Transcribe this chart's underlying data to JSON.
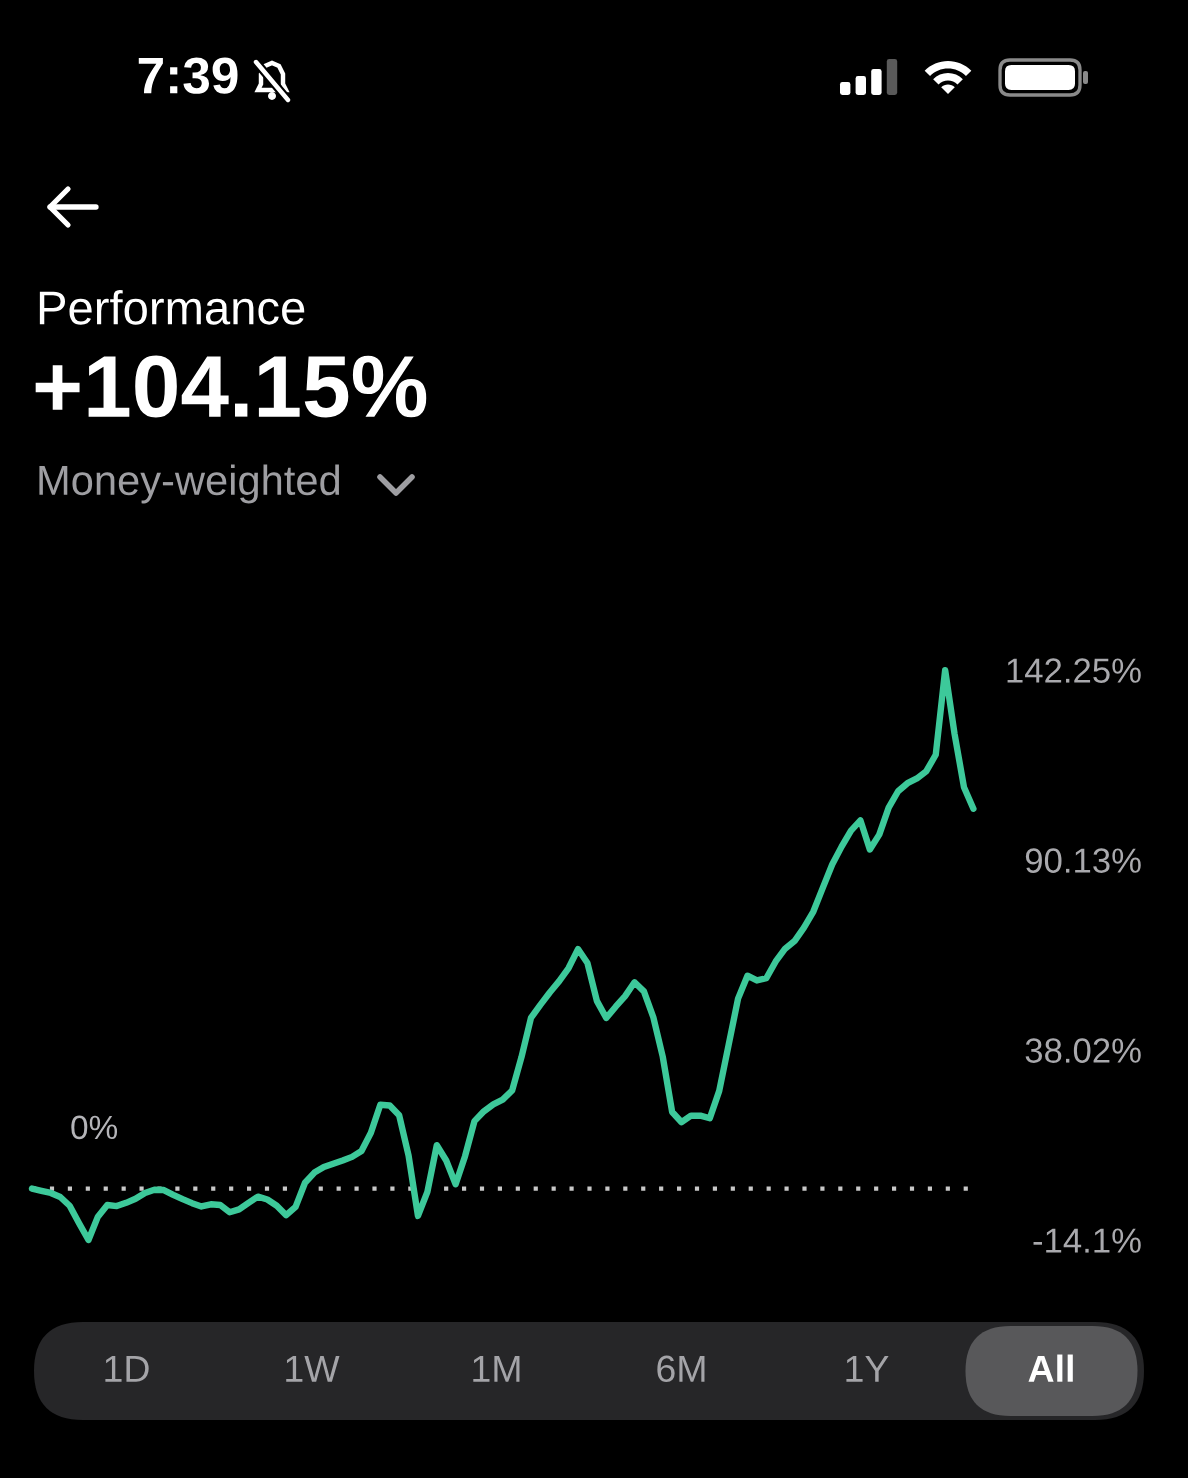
{
  "chart_data": {
    "type": "line",
    "title": "Performance",
    "subtitle": "+104.15%",
    "annotations": [
      "7:39",
      "Money-weighted",
      "1D",
      "1W",
      "1M",
      "6M",
      "1Y",
      "All"
    ],
    "categories": [
      null,
      null,
      null,
      null,
      null,
      null,
      null,
      null,
      null,
      null,
      null,
      null,
      null,
      null,
      null,
      null,
      null,
      null,
      null,
      null,
      null,
      null,
      null,
      null,
      null,
      null,
      null,
      null,
      null,
      null,
      null,
      null,
      null,
      null,
      null,
      null,
      null,
      null,
      null,
      null,
      null,
      null,
      null,
      null,
      null,
      null,
      null,
      null,
      null,
      null,
      null,
      null,
      null,
      null,
      null,
      null,
      null,
      null,
      null,
      null,
      null,
      null,
      null,
      null,
      null,
      null,
      null,
      null,
      null,
      null,
      null,
      null,
      null,
      null,
      null,
      null,
      null,
      null,
      null,
      null,
      null,
      null,
      null,
      null,
      null,
      null,
      null,
      null,
      null,
      null,
      null,
      null,
      null,
      null,
      null,
      null,
      null,
      null,
      null,
      null,
      null
    ],
    "series": [
      {
        "color": "#3dc99a",
        "values": [
          0,
          -0.6,
          -1.2,
          -2.3,
          -4.7,
          -9.5,
          -14.1,
          -7.7,
          -4.5,
          -4.8,
          -3.9,
          -2.8,
          -1.2,
          -0.3,
          -0.4,
          -1.7,
          -2.9,
          -4.0,
          -4.9,
          -4.3,
          -4.5,
          -6.5,
          -5.7,
          -3.9,
          -2.2,
          -3.0,
          -4.7,
          -7.3,
          -5.0,
          1.6,
          4.4,
          5.9,
          6.8,
          7.7,
          8.7,
          10.3,
          15.3,
          23.0,
          22.8,
          20.1,
          9.1,
          -7.5,
          -0.9,
          11.9,
          7.7,
          1.2,
          8.9,
          18.5,
          21.2,
          23.1,
          24.4,
          26.9,
          36.1,
          46.8,
          50.4,
          53.8,
          56.9,
          60.5,
          65.7,
          61.9,
          51.5,
          46.8,
          49.9,
          52.8,
          56.6,
          54.1,
          47.0,
          36.2,
          21.0,
          18.2,
          20.0,
          20.0,
          19.3,
          26.8,
          39.4,
          52.1,
          58.4,
          57.1,
          57.7,
          62.3,
          65.8,
          67.9,
          71.6,
          76.0,
          82.5,
          88.9,
          93.8,
          98.2,
          101.0,
          93.0,
          97.1,
          104.5,
          109.0,
          111.2,
          112.5,
          114.5,
          119.0,
          142.2,
          124.7,
          110.1,
          104.2
        ]
      }
    ],
    "ylim": [
      -14.1,
      142.25
    ],
    "yticks": [
      {
        "value": -14.1,
        "label": "-14.1%"
      },
      {
        "value": 38.02,
        "label": "38.02%"
      },
      {
        "value": 90.13,
        "label": "90.13%"
      },
      {
        "value": 142.25,
        "label": "142.25%"
      }
    ],
    "ref_lines": [
      {
        "axis": "y",
        "value": 0,
        "label": "0%",
        "line_style": "dotted",
        "color": "#c8c8c8"
      }
    ],
    "tick_labels": "y"
  }
}
